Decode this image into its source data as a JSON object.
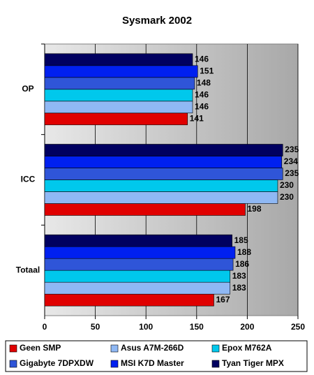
{
  "chart_data": {
    "type": "hbar",
    "title": "Sysmark 2002",
    "categories": [
      "OP",
      "ICC",
      "Totaal"
    ],
    "series": [
      {
        "name": "Geen SMP",
        "color": "#e00000",
        "values": [
          141,
          198,
          167
        ]
      },
      {
        "name": "Asus A7M-266D",
        "color": "#8fb8f4",
        "values": [
          146,
          230,
          183
        ]
      },
      {
        "name": "Epox M762A",
        "color": "#00c8ec",
        "values": [
          146,
          230,
          183
        ]
      },
      {
        "name": "Gigabyte 7DPXDW",
        "color": "#2f55d8",
        "values": [
          148,
          235,
          186
        ]
      },
      {
        "name": "MSI K7D Master",
        "color": "#0020f0",
        "values": [
          151,
          234,
          188
        ]
      },
      {
        "name": "Tyan Tiger MPX",
        "color": "#000060",
        "values": [
          146,
          235,
          185
        ]
      }
    ],
    "xlim": [
      0,
      250
    ],
    "xticks": [
      0,
      50,
      100,
      150,
      200,
      250
    ],
    "grid": true
  }
}
